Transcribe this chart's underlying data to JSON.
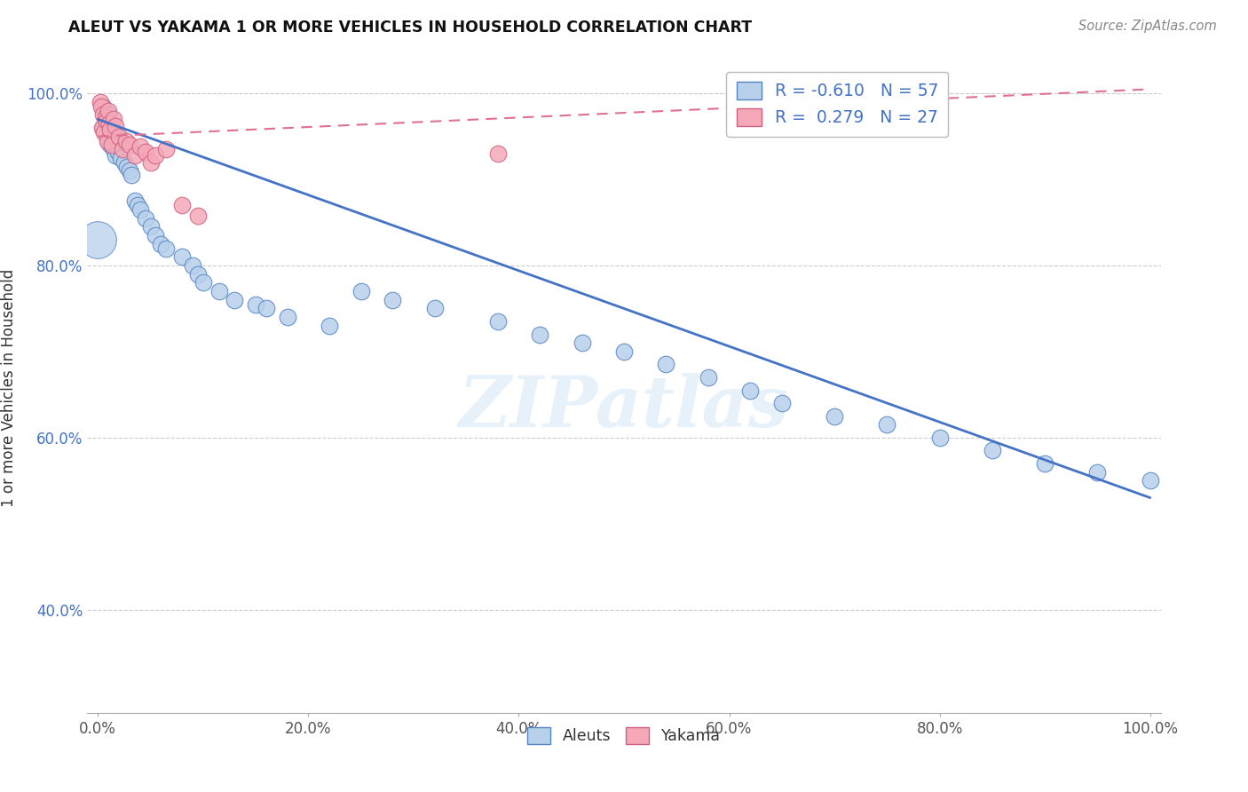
{
  "title": "ALEUT VS YAKAMA 1 OR MORE VEHICLES IN HOUSEHOLD CORRELATION CHART",
  "source": "Source: ZipAtlas.com",
  "ylabel": "1 or more Vehicles in Household",
  "legend_R_aleuts": "-0.610",
  "legend_N_aleuts": "57",
  "legend_R_yakama": "0.279",
  "legend_N_yakama": "27",
  "aleuts_color": "#b8d0ea",
  "yakama_color": "#f4a8b8",
  "aleuts_edge_color": "#5585c5",
  "yakama_edge_color": "#d06080",
  "aleuts_line_color": "#4472c4",
  "yakama_line_color": "#e07090",
  "watermark": "ZIPatlas",
  "aleuts_x": [
    0.005,
    0.005,
    0.007,
    0.008,
    0.009,
    0.01,
    0.01,
    0.011,
    0.012,
    0.013,
    0.015,
    0.016,
    0.017,
    0.018,
    0.019,
    0.02,
    0.022,
    0.025,
    0.028,
    0.03,
    0.032,
    0.035,
    0.038,
    0.04,
    0.045,
    0.05,
    0.055,
    0.06,
    0.065,
    0.08,
    0.09,
    0.095,
    0.1,
    0.115,
    0.13,
    0.15,
    0.16,
    0.18,
    0.22,
    0.25,
    0.28,
    0.32,
    0.38,
    0.42,
    0.46,
    0.5,
    0.54,
    0.58,
    0.62,
    0.65,
    0.7,
    0.75,
    0.8,
    0.85,
    0.9,
    0.95,
    1.0
  ],
  "aleuts_y": [
    0.985,
    0.96,
    0.97,
    0.965,
    0.95,
    0.975,
    0.945,
    0.958,
    0.94,
    0.955,
    0.935,
    0.948,
    0.928,
    0.942,
    0.932,
    0.938,
    0.925,
    0.92,
    0.915,
    0.91,
    0.905,
    0.875,
    0.87,
    0.865,
    0.855,
    0.845,
    0.835,
    0.825,
    0.82,
    0.81,
    0.8,
    0.79,
    0.78,
    0.77,
    0.76,
    0.755,
    0.75,
    0.74,
    0.73,
    0.77,
    0.76,
    0.75,
    0.735,
    0.72,
    0.71,
    0.7,
    0.685,
    0.67,
    0.655,
    0.64,
    0.625,
    0.615,
    0.6,
    0.585,
    0.57,
    0.56,
    0.55
  ],
  "aleuts_size_big": [
    0
  ],
  "aleuts_big_x": [
    0.0
  ],
  "aleuts_big_y": [
    0.83
  ],
  "yakama_x": [
    0.002,
    0.003,
    0.004,
    0.005,
    0.006,
    0.007,
    0.008,
    0.009,
    0.01,
    0.011,
    0.012,
    0.013,
    0.015,
    0.017,
    0.02,
    0.023,
    0.027,
    0.03,
    0.035,
    0.04,
    0.045,
    0.05,
    0.055,
    0.065,
    0.08,
    0.095,
    0.38
  ],
  "yakama_y": [
    0.99,
    0.985,
    0.96,
    0.975,
    0.955,
    0.972,
    0.968,
    0.945,
    0.98,
    0.965,
    0.958,
    0.94,
    0.97,
    0.962,
    0.95,
    0.935,
    0.945,
    0.94,
    0.928,
    0.938,
    0.932,
    0.92,
    0.928,
    0.935,
    0.87,
    0.858,
    0.93
  ],
  "xlim_min": -0.01,
  "xlim_max": 1.01,
  "ylim_min": 0.28,
  "ylim_max": 1.035,
  "ytick_vals": [
    0.4,
    0.6,
    0.8,
    1.0
  ],
  "xtick_vals": [
    0.0,
    0.2,
    0.4,
    0.6,
    0.8,
    1.0
  ],
  "aleuts_trend_x0": 0.0,
  "aleuts_trend_x1": 1.0,
  "aleuts_trend_y0": 0.97,
  "aleuts_trend_y1": 0.53,
  "yakama_trend_x0": 0.0,
  "yakama_trend_x1": 1.0,
  "yakama_trend_y0": 0.95,
  "yakama_trend_y1": 1.005
}
